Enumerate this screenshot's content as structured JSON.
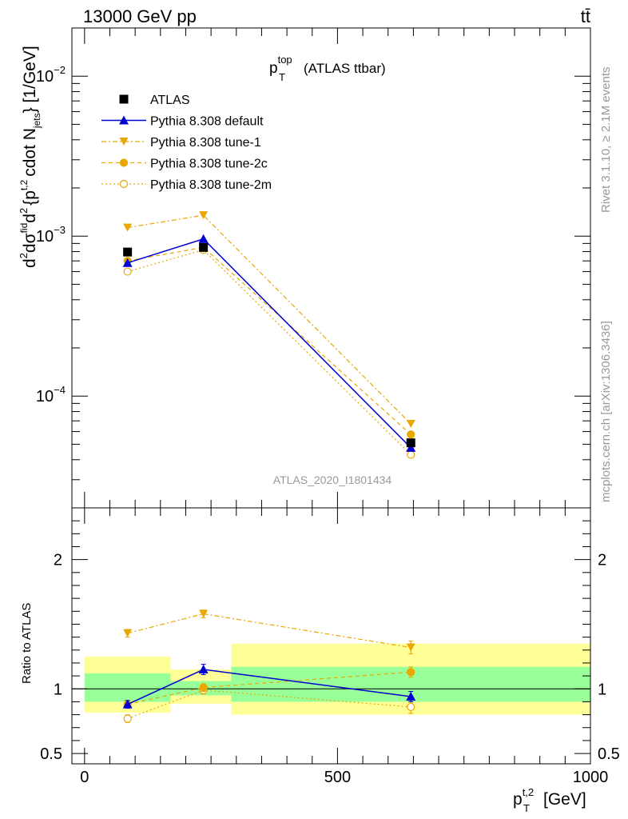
{
  "header": {
    "left": "13000 GeV pp",
    "right": "tt̄"
  },
  "side_labels": {
    "rivet": "Rivet 3.1.10, ≥ 2.1M events",
    "mcplots": "mcplots.cern.ch [arXiv:1306.3436]"
  },
  "colors": {
    "atlas": "#000000",
    "default": "#0000d0",
    "tune": "#e8a800",
    "band_inner": "#99ff99",
    "band_outer": "#ffff99",
    "watermark": "#999999"
  },
  "chart_data": [
    {
      "type": "line",
      "title": "p_T^top (ATLAS ttbar)",
      "title_main": "p",
      "title_sub": "T",
      "title_sup": "top",
      "title_rest": "(ATLAS ttbar)",
      "analysis_tag": "ATLAS_2020_I1801434",
      "ylabel": "d²σ^fid/d² {p_T^t,2 cdot N_jets} [1/GeV]",
      "ylabel_parts": {
        "frac_top": "d",
        "frac_one": "1",
        "frac_sigma": "σ",
        "frac_d": "d",
        "d2": "d",
        "sup2": "2",
        "sigma_fid": "σ",
        "fid": "fid",
        "d2b": "d",
        "sup2b": "2",
        "brace_open": "{p",
        "sub_T": "T",
        "sup_t2": "t,2",
        "cdot": "cdot N",
        "sub_jets": "jets",
        "close": "} [1/GeV]"
      },
      "yscale": "log",
      "ylim": [
        2e-05,
        0.02
      ],
      "xlim": [
        -25,
        1000
      ],
      "yticks": [
        {
          "value": 0.01,
          "base": "10",
          "exp": "−2"
        },
        {
          "value": 0.001,
          "base": "10",
          "exp": "−3"
        },
        {
          "value": 0.0001,
          "base": "10",
          "exp": "−4"
        }
      ],
      "legend_placement": "top-left",
      "series": [
        {
          "name": "ATLAS",
          "style": "data",
          "x": [
            85,
            235,
            645
          ],
          "y": [
            0.000795,
            0.00085,
            5.1e-05
          ],
          "xerr": [
            [
              0,
              170
            ],
            [
              170,
              290
            ],
            [
              290,
              1000
            ]
          ]
        },
        {
          "name": "Pythia 8.308 default",
          "style": "default",
          "x": [
            85,
            235,
            645
          ],
          "y": [
            0.00068,
            0.00096,
            4.75e-05
          ]
        },
        {
          "name": "Pythia 8.308 tune-1",
          "style": "tune1",
          "x": [
            85,
            235,
            645
          ],
          "y": [
            0.00113,
            0.00135,
            6.7e-05
          ]
        },
        {
          "name": "Pythia 8.308 tune-2c",
          "style": "tune2c",
          "x": [
            85,
            235,
            645
          ],
          "y": [
            0.0007,
            0.00085,
            5.75e-05
          ]
        },
        {
          "name": "Pythia 8.308 tune-2m",
          "style": "tune2m",
          "x": [
            85,
            235,
            645
          ],
          "y": [
            0.0006,
            0.00082,
            4.3e-05
          ]
        }
      ]
    },
    {
      "type": "line",
      "ylabel": "Ratio to ATLAS",
      "xlabel": "p_T^t,2 [GeV]",
      "xlabel_parts": {
        "main": "p",
        "sub": "T",
        "sup": "t,2",
        "rest": "[GeV]"
      },
      "ylim": [
        0.42,
        2.4
      ],
      "xlim": [
        -25,
        1000
      ],
      "yticks": [
        {
          "value": 2,
          "label": "2"
        },
        {
          "value": 1,
          "label": "1"
        },
        {
          "value": 0.5,
          "label": "0.5"
        }
      ],
      "xticks": [
        {
          "value": 0,
          "label": "0"
        },
        {
          "value": 500,
          "label": "500"
        },
        {
          "value": 1000,
          "label": "1000"
        }
      ],
      "bands": [
        {
          "x0": 0,
          "x1": 170,
          "inner": [
            0.9,
            1.12
          ],
          "outer": [
            0.815,
            1.25
          ]
        },
        {
          "x0": 170,
          "x1": 290,
          "inner": [
            0.95,
            1.06
          ],
          "outer": [
            0.885,
            1.15
          ]
        },
        {
          "x0": 290,
          "x1": 1000,
          "inner": [
            0.9,
            1.17
          ],
          "outer": [
            0.8,
            1.35
          ]
        }
      ],
      "series": [
        {
          "name": "Pythia 8.308 default",
          "style": "default",
          "x": [
            85,
            235,
            645
          ],
          "y": [
            0.88,
            1.15,
            0.94
          ],
          "yerr": [
            0.03,
            0.04,
            0.04
          ]
        },
        {
          "name": "Pythia 8.308 tune-1",
          "style": "tune1",
          "x": [
            85,
            235,
            645
          ],
          "y": [
            1.43,
            1.58,
            1.32
          ],
          "yerr": [
            0.03,
            0.03,
            0.05
          ]
        },
        {
          "name": "Pythia 8.308 tune-2c",
          "style": "tune2c",
          "x": [
            85,
            235,
            645
          ],
          "y": [
            0.88,
            1.01,
            1.13
          ],
          "yerr": [
            0.03,
            0.03,
            0.04
          ]
        },
        {
          "name": "Pythia 8.308 tune-2m",
          "style": "tune2m",
          "x": [
            85,
            235,
            645
          ],
          "y": [
            0.77,
            0.99,
            0.86
          ],
          "yerr": [
            0.03,
            0.03,
            0.05
          ]
        }
      ]
    }
  ]
}
